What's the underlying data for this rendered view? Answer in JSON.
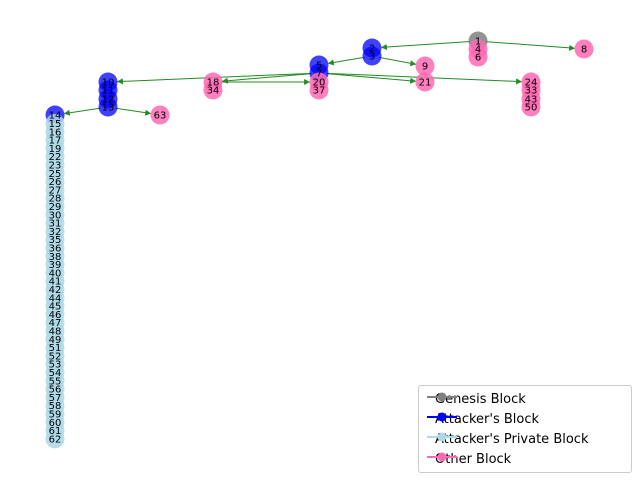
{
  "chart_data": {
    "type": "graph",
    "title": "",
    "colors": {
      "genesis": "#808080",
      "attacker": "#0000ff",
      "private": "#add8e6",
      "other": "#ff69b4",
      "edge": "#228b22"
    },
    "nodes": [
      {
        "id": "1",
        "kind": "genesis"
      },
      {
        "id": "2",
        "kind": "attacker"
      },
      {
        "id": "3",
        "kind": "attacker"
      },
      {
        "id": "4",
        "kind": "other"
      },
      {
        "id": "5",
        "kind": "attacker"
      },
      {
        "id": "6",
        "kind": "other"
      },
      {
        "id": "7",
        "kind": "attacker"
      },
      {
        "id": "8",
        "kind": "other"
      },
      {
        "id": "9",
        "kind": "other"
      },
      {
        "id": "10",
        "kind": "attacker"
      },
      {
        "id": "11",
        "kind": "attacker"
      },
      {
        "id": "12",
        "kind": "attacker"
      },
      {
        "id": "13",
        "kind": "attacker"
      },
      {
        "id": "14",
        "kind": "attacker"
      },
      {
        "id": "15",
        "kind": "private"
      },
      {
        "id": "16",
        "kind": "private"
      },
      {
        "id": "17",
        "kind": "private"
      },
      {
        "id": "18",
        "kind": "other"
      },
      {
        "id": "19",
        "kind": "private"
      },
      {
        "id": "20",
        "kind": "other"
      },
      {
        "id": "21",
        "kind": "other"
      },
      {
        "id": "22",
        "kind": "private"
      },
      {
        "id": "23",
        "kind": "private"
      },
      {
        "id": "24",
        "kind": "other"
      },
      {
        "id": "25",
        "kind": "private"
      },
      {
        "id": "26",
        "kind": "private"
      },
      {
        "id": "27",
        "kind": "private"
      },
      {
        "id": "28",
        "kind": "private"
      },
      {
        "id": "29",
        "kind": "private"
      },
      {
        "id": "30",
        "kind": "private"
      },
      {
        "id": "31",
        "kind": "private"
      },
      {
        "id": "32",
        "kind": "private"
      },
      {
        "id": "33",
        "kind": "other"
      },
      {
        "id": "34",
        "kind": "other"
      },
      {
        "id": "35",
        "kind": "private"
      },
      {
        "id": "36",
        "kind": "private"
      },
      {
        "id": "37",
        "kind": "other"
      },
      {
        "id": "38",
        "kind": "private"
      },
      {
        "id": "39",
        "kind": "private"
      },
      {
        "id": "40",
        "kind": "private"
      },
      {
        "id": "41",
        "kind": "private"
      },
      {
        "id": "42",
        "kind": "private"
      },
      {
        "id": "43",
        "kind": "other"
      },
      {
        "id": "44",
        "kind": "private"
      },
      {
        "id": "45",
        "kind": "private"
      },
      {
        "id": "46",
        "kind": "private"
      },
      {
        "id": "47",
        "kind": "private"
      },
      {
        "id": "48",
        "kind": "private"
      },
      {
        "id": "49",
        "kind": "private"
      },
      {
        "id": "50",
        "kind": "other"
      },
      {
        "id": "51",
        "kind": "private"
      },
      {
        "id": "52",
        "kind": "private"
      },
      {
        "id": "53",
        "kind": "private"
      },
      {
        "id": "54",
        "kind": "private"
      },
      {
        "id": "55",
        "kind": "private"
      },
      {
        "id": "56",
        "kind": "private"
      },
      {
        "id": "57",
        "kind": "private"
      },
      {
        "id": "58",
        "kind": "private"
      },
      {
        "id": "59",
        "kind": "private"
      },
      {
        "id": "60",
        "kind": "private"
      },
      {
        "id": "61",
        "kind": "private"
      },
      {
        "id": "62",
        "kind": "private"
      },
      {
        "id": "63",
        "kind": "other"
      }
    ],
    "edges": [
      [
        "1",
        "2"
      ],
      [
        "1",
        "8"
      ],
      [
        "3",
        "9"
      ],
      [
        "3",
        "5"
      ],
      [
        "7",
        "18"
      ],
      [
        "7",
        "21"
      ],
      [
        "7",
        "24"
      ],
      [
        "7",
        "37"
      ],
      [
        "7",
        "10"
      ],
      [
        "18",
        "20"
      ],
      [
        "13",
        "63"
      ],
      [
        "13",
        "14"
      ]
    ],
    "legend": {
      "position": "lower-right",
      "entries": [
        {
          "label": "Genesis Block",
          "kind": "genesis"
        },
        {
          "label": "Attacker's Block",
          "kind": "attacker"
        },
        {
          "label": "Attacker's Private Block",
          "kind": "private"
        },
        {
          "label": "Other Block",
          "kind": "other"
        }
      ]
    }
  }
}
